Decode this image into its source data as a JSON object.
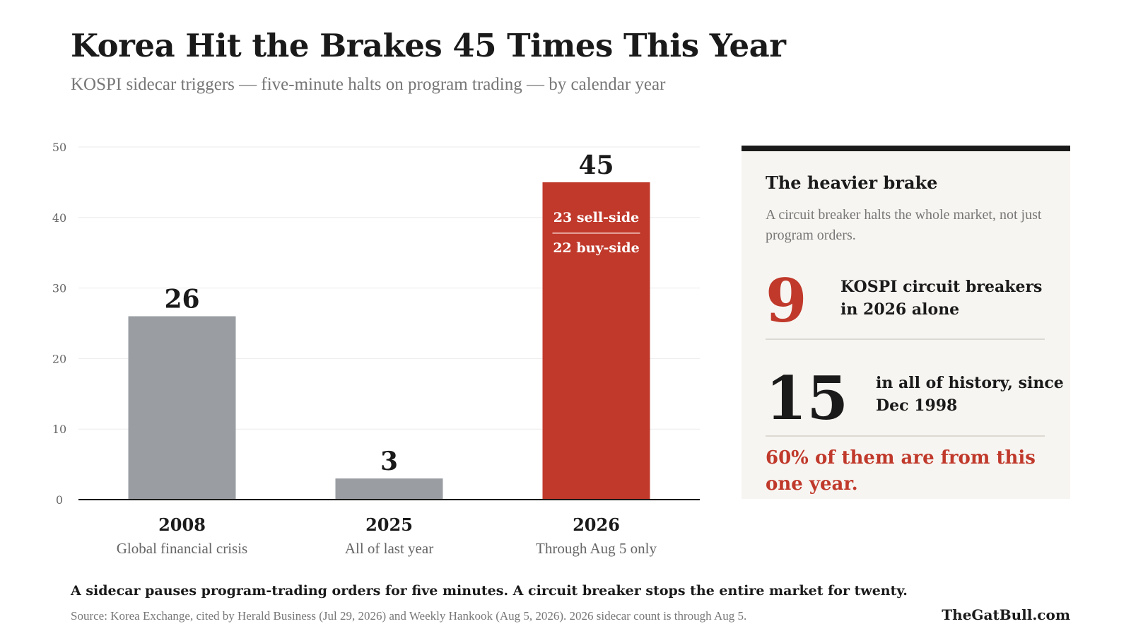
{
  "header": {
    "title": "Korea Hit the Brakes 45 Times This Year",
    "subtitle": "KOSPI sidecar triggers — five-minute halts on program trading — by calendar year"
  },
  "chart_data": {
    "type": "bar",
    "title": "Korea Hit the Brakes 45 Times This Year",
    "subtitle": "KOSPI sidecar triggers — five-minute halts on program trading — by calendar year",
    "categories": [
      "2008",
      "2025",
      "2026"
    ],
    "category_notes": [
      "Global financial crisis",
      "All of last year",
      "Through Aug 5 only"
    ],
    "values": [
      26,
      3,
      45
    ],
    "data_labels": [
      "26",
      "3",
      "45"
    ],
    "bar_colors": [
      "#9a9ea3",
      "#9a9ea3",
      "#c0392b"
    ],
    "breakdown_2026": [
      "23 sell-side",
      "22 buy-side"
    ],
    "ylim": [
      0,
      50
    ],
    "yticks": [
      0,
      10,
      20,
      30,
      40,
      50
    ],
    "xlabel": "",
    "ylabel": "",
    "grid": true
  },
  "panel": {
    "heading": "The heavier brake",
    "description": "A circuit breaker halts the whole market, not just program orders.",
    "stat1": {
      "number": "9",
      "text": "KOSPI circuit breakers in 2026 alone"
    },
    "stat2": {
      "number": "15",
      "text": "in all of history, since Dec 1998"
    },
    "highlight": "60% of them are from this one year."
  },
  "footer": {
    "note": "A sidecar pauses program-trading orders for five minutes. A circuit breaker stops the entire market for twenty.",
    "source": "Source: Korea Exchange, cited by Herald Business (Jul 29, 2026) and Weekly Hankook (Aug 5, 2026). 2026 sidecar count is through Aug 5.",
    "brand": "TheGatBull.com"
  },
  "colors": {
    "accent_red": "#c0392b",
    "bar_gray": "#9a9ea3",
    "panel_bg": "#f7f5f1",
    "text_dark": "#1a1a1a",
    "text_muted": "#777777"
  }
}
